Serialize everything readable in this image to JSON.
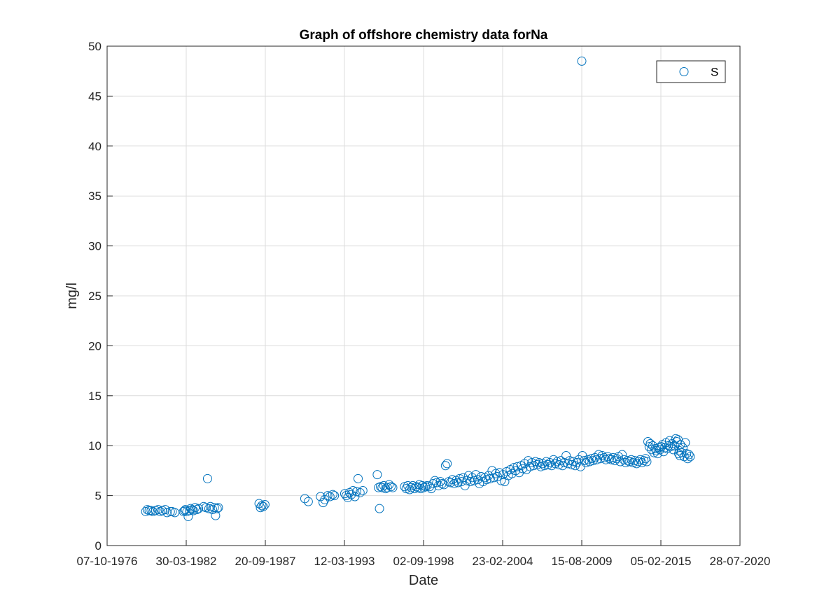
{
  "chart_data": {
    "type": "scatter",
    "title": "Graph of offshore chemistry data forNa",
    "xlabel": "Date",
    "ylabel": "mg/l",
    "xlim": [
      "1976-10-07",
      "2020-07-28"
    ],
    "ylim": [
      0,
      50
    ],
    "x_ticks": [
      "07-10-1976",
      "30-03-1982",
      "20-09-1987",
      "12-03-1993",
      "02-09-1998",
      "23-02-2004",
      "15-08-2009",
      "05-02-2015",
      "28-07-2020"
    ],
    "y_ticks": [
      0,
      5,
      10,
      15,
      20,
      25,
      30,
      35,
      40,
      45,
      50
    ],
    "grid": true,
    "legend_position": "top-right",
    "marker_color": "#0072BD",
    "series": [
      {
        "name": "S",
        "points": [
          [
            "1979-06-10",
            3.4
          ],
          [
            "1979-07-20",
            3.6
          ],
          [
            "1979-09-05",
            3.5
          ],
          [
            "1979-10-25",
            3.5
          ],
          [
            "1979-12-10",
            3.4
          ],
          [
            "1980-02-15",
            3.5
          ],
          [
            "1980-04-20",
            3.6
          ],
          [
            "1980-06-10",
            3.4
          ],
          [
            "1980-08-01",
            3.5
          ],
          [
            "1980-10-15",
            3.6
          ],
          [
            "1980-12-01",
            3.3
          ],
          [
            "1981-02-20",
            3.4
          ],
          [
            "1981-04-10",
            3.4
          ],
          [
            "1981-06-15",
            3.3
          ],
          [
            "1982-01-20",
            3.4
          ],
          [
            "1982-02-15",
            3.5
          ],
          [
            "1982-03-10",
            3.6
          ],
          [
            "1982-04-15",
            3.4
          ],
          [
            "1982-05-20",
            2.9
          ],
          [
            "1982-06-20",
            3.5
          ],
          [
            "1982-07-20",
            3.7
          ],
          [
            "1982-08-25",
            3.6
          ],
          [
            "1982-09-30",
            3.5
          ],
          [
            "1982-11-10",
            3.8
          ],
          [
            "1982-12-20",
            3.6
          ],
          [
            "1983-02-05",
            3.7
          ],
          [
            "1983-06-15",
            3.9
          ],
          [
            "1983-08-10",
            3.8
          ],
          [
            "1983-09-20",
            6.7
          ],
          [
            "1983-10-25",
            3.7
          ],
          [
            "1983-12-01",
            3.9
          ],
          [
            "1984-01-25",
            3.6
          ],
          [
            "1984-03-10",
            3.8
          ],
          [
            "1984-04-10",
            3.0
          ],
          [
            "1984-05-20",
            3.7
          ],
          [
            "1984-06-20",
            3.8
          ],
          [
            "1987-04-15",
            4.2
          ],
          [
            "1987-05-20",
            3.8
          ],
          [
            "1987-06-25",
            4.0
          ],
          [
            "1987-07-30",
            3.9
          ],
          [
            "1987-09-10",
            4.1
          ],
          [
            "1990-06-15",
            4.7
          ],
          [
            "1990-09-10",
            4.4
          ],
          [
            "1991-07-15",
            4.9
          ],
          [
            "1991-09-20",
            4.3
          ],
          [
            "1991-11-01",
            4.6
          ],
          [
            "1992-01-15",
            5.0
          ],
          [
            "1992-03-10",
            4.9
          ],
          [
            "1992-05-20",
            5.1
          ],
          [
            "1992-07-01",
            5.0
          ],
          [
            "1993-03-20",
            5.2
          ],
          [
            "1993-04-25",
            5.0
          ],
          [
            "1993-06-05",
            4.8
          ],
          [
            "1993-07-20",
            5.3
          ],
          [
            "1993-09-01",
            5.1
          ],
          [
            "1993-10-15",
            5.5
          ],
          [
            "1993-12-01",
            4.9
          ],
          [
            "1994-01-15",
            5.4
          ],
          [
            "1994-02-20",
            6.7
          ],
          [
            "1994-04-10",
            5.3
          ],
          [
            "1994-06-20",
            5.5
          ],
          [
            "1995-06-20",
            7.1
          ],
          [
            "1995-07-20",
            5.8
          ],
          [
            "1995-08-15",
            3.7
          ],
          [
            "1995-09-10",
            5.9
          ],
          [
            "1995-10-20",
            5.8
          ],
          [
            "1995-12-01",
            6.0
          ],
          [
            "1996-01-15",
            5.7
          ],
          [
            "1996-03-01",
            5.8
          ],
          [
            "1996-04-15",
            6.1
          ],
          [
            "1996-06-01",
            5.9
          ],
          [
            "1996-07-15",
            5.8
          ],
          [
            "1997-05-10",
            5.9
          ],
          [
            "1997-06-20",
            5.7
          ],
          [
            "1997-08-01",
            6.0
          ],
          [
            "1997-09-15",
            5.6
          ],
          [
            "1997-10-25",
            5.8
          ],
          [
            "1997-12-05",
            6.0
          ],
          [
            "1998-01-20",
            5.7
          ],
          [
            "1998-03-01",
            5.9
          ],
          [
            "1998-04-15",
            5.8
          ],
          [
            "1998-05-20",
            6.1
          ],
          [
            "1998-06-25",
            5.7
          ],
          [
            "1998-08-01",
            6.0
          ],
          [
            "1998-09-10",
            5.8
          ],
          [
            "1998-10-20",
            5.9
          ],
          [
            "1998-12-01",
            6.0
          ],
          [
            "1999-02-01",
            5.9
          ],
          [
            "1999-03-15",
            5.7
          ],
          [
            "1999-05-01",
            6.2
          ],
          [
            "1999-06-15",
            6.5
          ],
          [
            "1999-08-01",
            6.3
          ],
          [
            "1999-09-15",
            6.0
          ],
          [
            "1999-11-01",
            6.4
          ],
          [
            "1999-12-15",
            6.2
          ],
          [
            "2000-02-01",
            6.1
          ],
          [
            "2000-03-10",
            8.0
          ],
          [
            "2000-04-20",
            8.2
          ],
          [
            "2000-06-01",
            6.4
          ],
          [
            "2000-07-15",
            6.3
          ],
          [
            "2000-09-01",
            6.6
          ],
          [
            "2000-10-15",
            6.2
          ],
          [
            "2000-12-01",
            6.5
          ],
          [
            "2001-01-20",
            6.3
          ],
          [
            "2001-03-01",
            6.7
          ],
          [
            "2001-04-15",
            6.4
          ],
          [
            "2001-06-01",
            6.8
          ],
          [
            "2001-07-15",
            6.0
          ],
          [
            "2001-09-01",
            6.5
          ],
          [
            "2001-10-15",
            7.0
          ],
          [
            "2001-12-01",
            6.4
          ],
          [
            "2002-01-15",
            6.8
          ],
          [
            "2002-03-01",
            6.5
          ],
          [
            "2002-04-15",
            7.1
          ],
          [
            "2002-06-01",
            6.6
          ],
          [
            "2002-07-15",
            6.2
          ],
          [
            "2002-09-01",
            6.9
          ],
          [
            "2002-10-15",
            6.4
          ],
          [
            "2002-12-01",
            6.8
          ],
          [
            "2003-01-15",
            6.6
          ],
          [
            "2003-03-01",
            7.0
          ],
          [
            "2003-04-15",
            6.7
          ],
          [
            "2003-06-01",
            7.5
          ],
          [
            "2003-07-15",
            6.8
          ],
          [
            "2003-09-01",
            7.2
          ],
          [
            "2003-10-15",
            6.9
          ],
          [
            "2003-12-01",
            7.3
          ],
          [
            "2004-01-15",
            6.5
          ],
          [
            "2004-03-01",
            7.1
          ],
          [
            "2004-04-15",
            6.4
          ],
          [
            "2004-06-01",
            7.4
          ],
          [
            "2004-07-15",
            7.0
          ],
          [
            "2004-09-01",
            7.6
          ],
          [
            "2004-10-15",
            7.2
          ],
          [
            "2004-12-01",
            7.8
          ],
          [
            "2005-01-15",
            7.5
          ],
          [
            "2005-03-01",
            7.9
          ],
          [
            "2005-04-15",
            7.3
          ],
          [
            "2005-06-01",
            8.0
          ],
          [
            "2005-07-15",
            7.7
          ],
          [
            "2005-09-01",
            8.2
          ],
          [
            "2005-10-15",
            7.6
          ],
          [
            "2005-12-01",
            8.5
          ],
          [
            "2006-01-15",
            7.9
          ],
          [
            "2006-03-01",
            8.3
          ],
          [
            "2006-04-15",
            8.0
          ],
          [
            "2006-06-01",
            8.4
          ],
          [
            "2006-07-15",
            8.1
          ],
          [
            "2006-09-01",
            8.3
          ],
          [
            "2006-10-15",
            7.9
          ],
          [
            "2006-12-01",
            8.2
          ],
          [
            "2007-01-15",
            8.0
          ],
          [
            "2007-03-01",
            8.4
          ],
          [
            "2007-04-15",
            8.1
          ],
          [
            "2007-06-01",
            8.3
          ],
          [
            "2007-07-15",
            8.0
          ],
          [
            "2007-09-01",
            8.6
          ],
          [
            "2007-10-15",
            8.2
          ],
          [
            "2007-12-01",
            8.4
          ],
          [
            "2008-01-15",
            8.1
          ],
          [
            "2008-03-01",
            8.5
          ],
          [
            "2008-04-15",
            8.0
          ],
          [
            "2008-06-01",
            8.3
          ],
          [
            "2008-07-15",
            9.0
          ],
          [
            "2008-09-01",
            8.2
          ],
          [
            "2008-10-15",
            8.5
          ],
          [
            "2008-12-01",
            8.1
          ],
          [
            "2009-01-15",
            8.4
          ],
          [
            "2009-03-01",
            8.0
          ],
          [
            "2009-04-15",
            8.3
          ],
          [
            "2009-06-01",
            8.6
          ],
          [
            "2009-07-15",
            7.9
          ],
          [
            "2009-08-15",
            48.5
          ],
          [
            "2009-09-01",
            9.0
          ],
          [
            "2009-10-15",
            8.5
          ],
          [
            "2009-12-01",
            8.3
          ],
          [
            "2010-01-15",
            8.6
          ],
          [
            "2010-03-01",
            8.4
          ],
          [
            "2010-04-15",
            8.7
          ],
          [
            "2010-06-01",
            8.5
          ],
          [
            "2010-07-15",
            8.8
          ],
          [
            "2010-09-01",
            8.6
          ],
          [
            "2010-10-15",
            9.1
          ],
          [
            "2010-12-01",
            8.7
          ],
          [
            "2011-01-15",
            9.0
          ],
          [
            "2011-03-01",
            8.8
          ],
          [
            "2011-04-15",
            8.6
          ],
          [
            "2011-06-01",
            8.9
          ],
          [
            "2011-07-15",
            8.7
          ],
          [
            "2011-09-01",
            8.6
          ],
          [
            "2011-10-15",
            8.8
          ],
          [
            "2011-12-01",
            8.5
          ],
          [
            "2012-01-15",
            8.7
          ],
          [
            "2012-03-01",
            8.9
          ],
          [
            "2012-04-15",
            8.4
          ],
          [
            "2012-06-01",
            9.1
          ],
          [
            "2012-07-15",
            8.6
          ],
          [
            "2012-09-01",
            8.3
          ],
          [
            "2012-10-15",
            8.5
          ],
          [
            "2012-12-01",
            8.4
          ],
          [
            "2013-01-15",
            8.6
          ],
          [
            "2013-03-01",
            8.3
          ],
          [
            "2013-04-15",
            8.5
          ],
          [
            "2013-06-01",
            8.2
          ],
          [
            "2013-07-15",
            8.4
          ],
          [
            "2013-09-01",
            8.6
          ],
          [
            "2013-10-15",
            8.3
          ],
          [
            "2013-12-01",
            8.5
          ],
          [
            "2014-01-15",
            8.7
          ],
          [
            "2014-02-15",
            8.4
          ],
          [
            "2014-03-15",
            10.4
          ],
          [
            "2014-04-15",
            9.9
          ],
          [
            "2014-05-15",
            10.2
          ],
          [
            "2014-06-15",
            9.6
          ],
          [
            "2014-07-15",
            10.0
          ],
          [
            "2014-08-15",
            9.3
          ],
          [
            "2014-09-15",
            9.7
          ],
          [
            "2014-10-15",
            9.5
          ],
          [
            "2014-11-15",
            9.2
          ],
          [
            "2014-12-15",
            9.8
          ],
          [
            "2015-01-15",
            9.6
          ],
          [
            "2015-02-15",
            9.9
          ],
          [
            "2015-03-15",
            10.1
          ],
          [
            "2015-04-15",
            9.4
          ],
          [
            "2015-05-15",
            9.8
          ],
          [
            "2015-06-15",
            10.3
          ],
          [
            "2015-07-15",
            9.7
          ],
          [
            "2015-08-15",
            10.0
          ],
          [
            "2015-09-15",
            10.5
          ],
          [
            "2015-10-15",
            9.9
          ],
          [
            "2015-11-15",
            10.2
          ],
          [
            "2015-12-15",
            9.6
          ],
          [
            "2016-01-15",
            10.0
          ],
          [
            "2016-02-15",
            10.7
          ],
          [
            "2016-03-15",
            10.4
          ],
          [
            "2016-04-15",
            10.6
          ],
          [
            "2016-05-01",
            9.2
          ],
          [
            "2016-05-15",
            9.5
          ],
          [
            "2016-06-01",
            9.0
          ],
          [
            "2016-06-15",
            10.1
          ],
          [
            "2016-07-15",
            9.3
          ],
          [
            "2016-08-15",
            9.8
          ],
          [
            "2016-09-15",
            8.9
          ],
          [
            "2016-10-15",
            10.3
          ],
          [
            "2016-11-15",
            9.2
          ],
          [
            "2016-12-15",
            8.7
          ],
          [
            "2017-01-15",
            9.1
          ],
          [
            "2017-02-15",
            8.9
          ]
        ]
      }
    ]
  }
}
